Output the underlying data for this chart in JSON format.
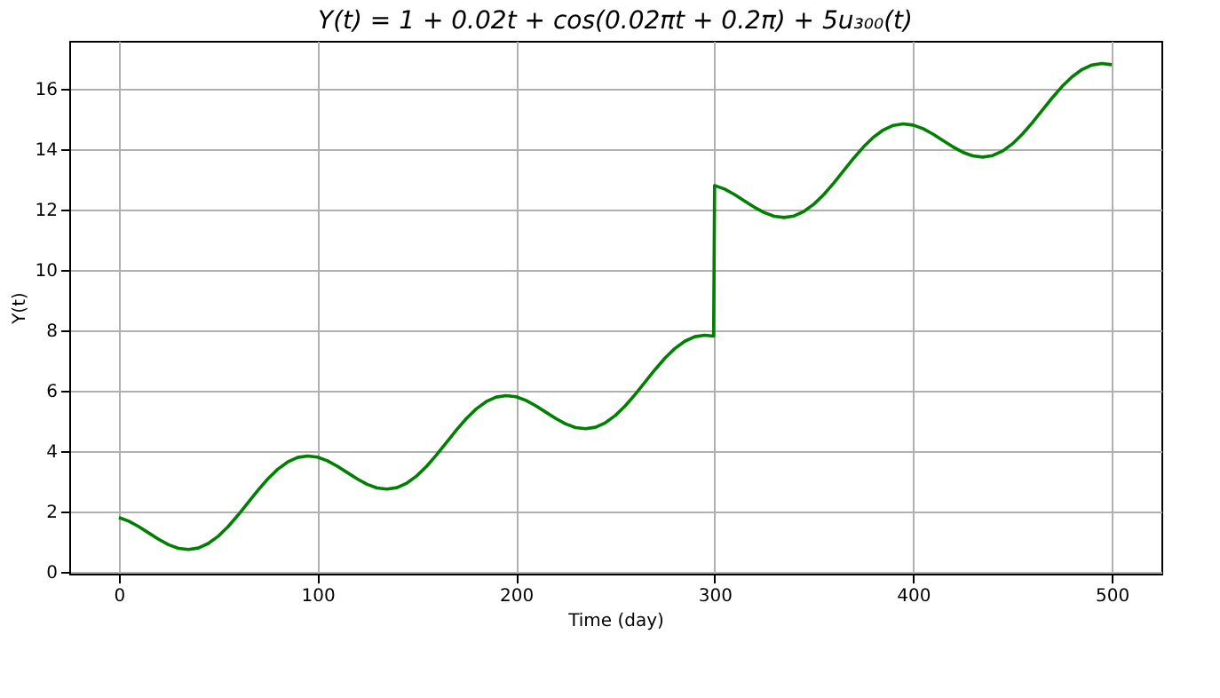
{
  "chart_data": {
    "type": "line",
    "title": "Y(t) = 1 + 0.02t + cos(0.02πt + 0.2π) + 5u₃₀₀(t)",
    "xlabel": "Time (day)",
    "ylabel": "Y(t)",
    "x": [
      0,
      5,
      10,
      15,
      20,
      25,
      30,
      35,
      40,
      45,
      50,
      55,
      60,
      65,
      70,
      75,
      80,
      85,
      90,
      95,
      100,
      105,
      110,
      115,
      120,
      125,
      130,
      135,
      140,
      145,
      150,
      155,
      160,
      165,
      170,
      175,
      180,
      185,
      190,
      195,
      200,
      205,
      210,
      215,
      220,
      225,
      230,
      235,
      240,
      245,
      250,
      255,
      260,
      265,
      270,
      275,
      280,
      285,
      290,
      295,
      299.5,
      300,
      305,
      310,
      315,
      320,
      325,
      330,
      335,
      340,
      345,
      350,
      355,
      360,
      365,
      370,
      375,
      380,
      385,
      390,
      395,
      400,
      405,
      410,
      415,
      420,
      425,
      430,
      435,
      440,
      445,
      450,
      455,
      460,
      465,
      470,
      475,
      480,
      485,
      490,
      495,
      500
    ],
    "series": [
      {
        "color": "#008000",
        "values": [
          1.81,
          1.69,
          1.51,
          1.3,
          1.09,
          0.91,
          0.79,
          0.75,
          0.8,
          0.95,
          1.19,
          1.51,
          1.89,
          2.3,
          2.71,
          3.09,
          3.41,
          3.65,
          3.8,
          3.85,
          3.81,
          3.69,
          3.51,
          3.3,
          3.09,
          2.91,
          2.79,
          2.75,
          2.8,
          2.95,
          3.19,
          3.51,
          3.89,
          4.3,
          4.71,
          5.09,
          5.41,
          5.65,
          5.8,
          5.85,
          5.81,
          5.69,
          5.51,
          5.3,
          5.09,
          4.91,
          4.79,
          4.75,
          4.8,
          4.95,
          5.19,
          5.51,
          5.89,
          6.3,
          6.71,
          7.09,
          7.41,
          7.65,
          7.8,
          7.85,
          7.82,
          12.81,
          12.69,
          12.51,
          12.3,
          12.09,
          11.91,
          11.79,
          11.75,
          11.8,
          11.95,
          12.19,
          12.51,
          12.89,
          13.3,
          13.71,
          14.09,
          14.41,
          14.65,
          14.8,
          14.85,
          14.81,
          14.69,
          14.51,
          14.3,
          14.09,
          13.91,
          13.79,
          13.75,
          13.8,
          13.95,
          14.19,
          14.51,
          14.89,
          15.3,
          15.71,
          16.09,
          16.41,
          16.65,
          16.8,
          16.85,
          16.81
        ]
      }
    ],
    "xlim": [
      -25,
      525
    ],
    "ylim": [
      -0.05,
      17.6
    ],
    "xticks": [
      0,
      100,
      200,
      300,
      400,
      500
    ],
    "yticks": [
      0,
      2,
      4,
      6,
      8,
      10,
      12,
      14,
      16
    ],
    "grid": true,
    "marker": "none",
    "line_style": "solid"
  }
}
